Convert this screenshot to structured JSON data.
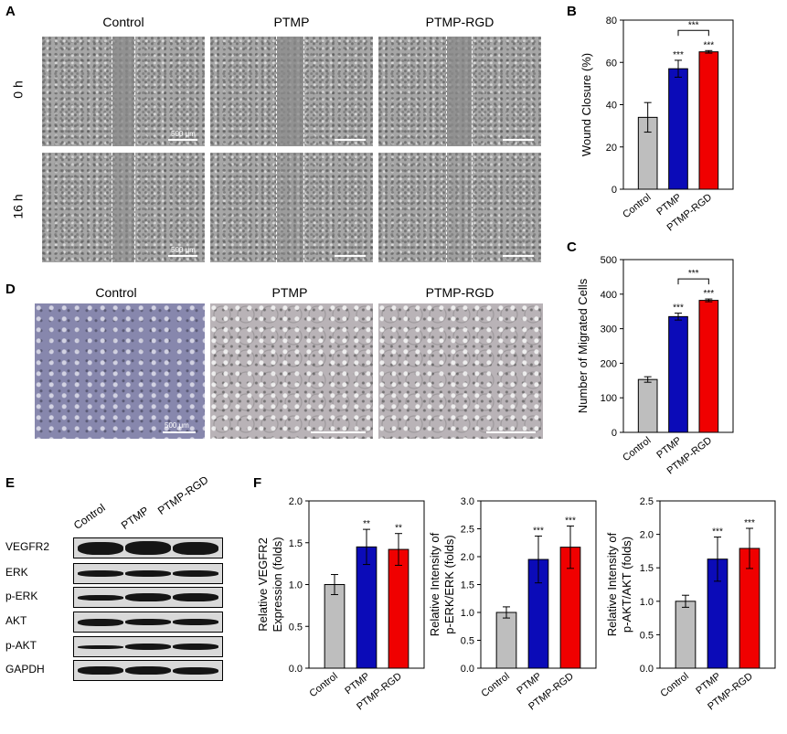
{
  "panels": {
    "A": "A",
    "B": "B",
    "C": "C",
    "D": "D",
    "E": "E",
    "F": "F"
  },
  "groups": [
    "Control",
    "PTMP",
    "PTMP-RGD"
  ],
  "wound": {
    "rows": [
      "0 h",
      "16 h"
    ],
    "scale_label": "500 μm"
  },
  "tube": {
    "scale_label": "500 μm"
  },
  "western": {
    "lanes": [
      "Control",
      "PTMP",
      "PTMP-RGD"
    ],
    "proteins": [
      "VEGFR2",
      "ERK",
      "p-ERK",
      "AKT",
      "p-AKT",
      "GAPDH"
    ]
  },
  "colors": {
    "Control": "#bebebe",
    "PTMP": "#0b0bb8",
    "PTMP-RGD": "#f00000"
  },
  "chart_data": [
    {
      "id": "B",
      "type": "bar",
      "categories": [
        "Control",
        "PTMP",
        "PTMP-RGD"
      ],
      "values": [
        34,
        57,
        65
      ],
      "errors": [
        7,
        4,
        0.6
      ],
      "ylabel": "Wound Closure (%)",
      "ylim": [
        0,
        80
      ],
      "yticks": [
        0,
        20,
        40,
        60,
        80
      ],
      "sig": [
        "",
        "***",
        "***"
      ],
      "bracket": {
        "from": 1,
        "to": 2,
        "label": "***"
      }
    },
    {
      "id": "C",
      "type": "bar",
      "categories": [
        "Control",
        "PTMP",
        "PTMP-RGD"
      ],
      "values": [
        153,
        335,
        382
      ],
      "errors": [
        8,
        10,
        4
      ],
      "ylabel": "Number of Migrated Cells",
      "ylim": [
        0,
        500
      ],
      "yticks": [
        0,
        100,
        200,
        300,
        400,
        500
      ],
      "sig": [
        "",
        "***",
        "***"
      ],
      "bracket": {
        "from": 1,
        "to": 2,
        "label": "***"
      }
    },
    {
      "id": "F1",
      "type": "bar",
      "categories": [
        "Control",
        "PTMP",
        "PTMP-RGD"
      ],
      "values": [
        1.0,
        1.45,
        1.42
      ],
      "errors": [
        0.12,
        0.21,
        0.19
      ],
      "ylabel": [
        "Relative VEGFR2",
        "Expression (folds)"
      ],
      "ylim": [
        0,
        2.0
      ],
      "yticks": [
        0.0,
        0.5,
        1.0,
        1.5,
        2.0
      ],
      "sig": [
        "",
        "**",
        "**"
      ]
    },
    {
      "id": "F2",
      "type": "bar",
      "categories": [
        "Control",
        "PTMP",
        "PTMP-RGD"
      ],
      "values": [
        1.0,
        1.95,
        2.17
      ],
      "errors": [
        0.1,
        0.42,
        0.38
      ],
      "ylabel": [
        "Relative Intensity of",
        "p-ERK/ERK (folds)"
      ],
      "ylim": [
        0,
        3.0
      ],
      "yticks": [
        0.0,
        0.5,
        1.0,
        1.5,
        2.0,
        2.5,
        3.0
      ],
      "sig": [
        "",
        "***",
        "***"
      ]
    },
    {
      "id": "F3",
      "type": "bar",
      "categories": [
        "Control",
        "PTMP",
        "PTMP-RGD"
      ],
      "values": [
        1.0,
        1.63,
        1.79
      ],
      "errors": [
        0.09,
        0.33,
        0.3
      ],
      "ylabel": [
        "Relative Intensity of",
        "p-AKT/AKT (folds)"
      ],
      "ylim": [
        0,
        2.5
      ],
      "yticks": [
        0.0,
        0.5,
        1.0,
        1.5,
        2.0,
        2.5
      ],
      "sig": [
        "",
        "***",
        "***"
      ]
    }
  ]
}
